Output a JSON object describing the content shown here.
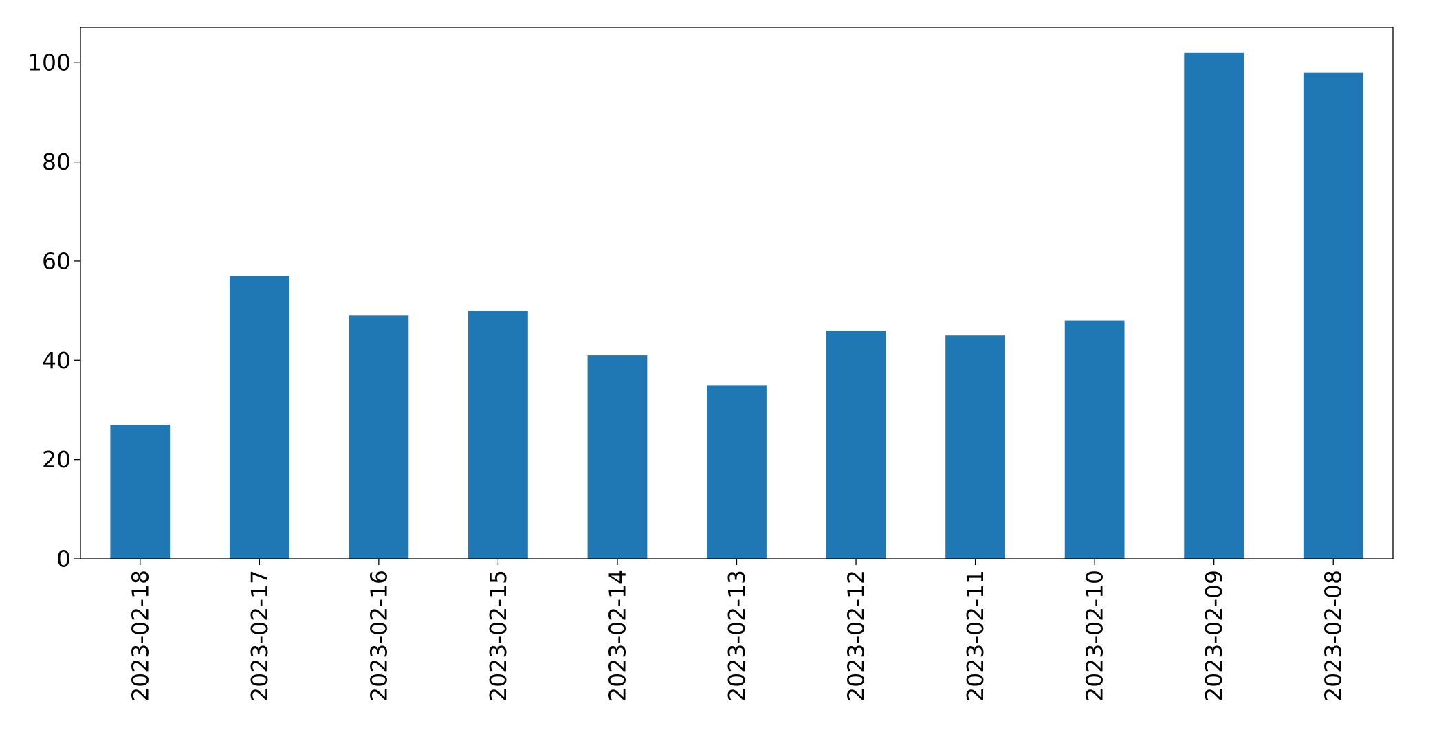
{
  "chart_data": {
    "type": "bar",
    "categories": [
      "2023-02-18",
      "2023-02-17",
      "2023-02-16",
      "2023-02-15",
      "2023-02-14",
      "2023-02-13",
      "2023-02-12",
      "2023-02-11",
      "2023-02-10",
      "2023-02-09",
      "2023-02-08"
    ],
    "values": [
      27,
      57,
      49,
      50,
      41,
      35,
      46,
      45,
      48,
      102,
      98
    ],
    "color": "#1f77b4",
    "ylim": [
      0,
      107.1
    ],
    "yticks": [
      0,
      20,
      40,
      60,
      80,
      100
    ],
    "grid": false
  }
}
